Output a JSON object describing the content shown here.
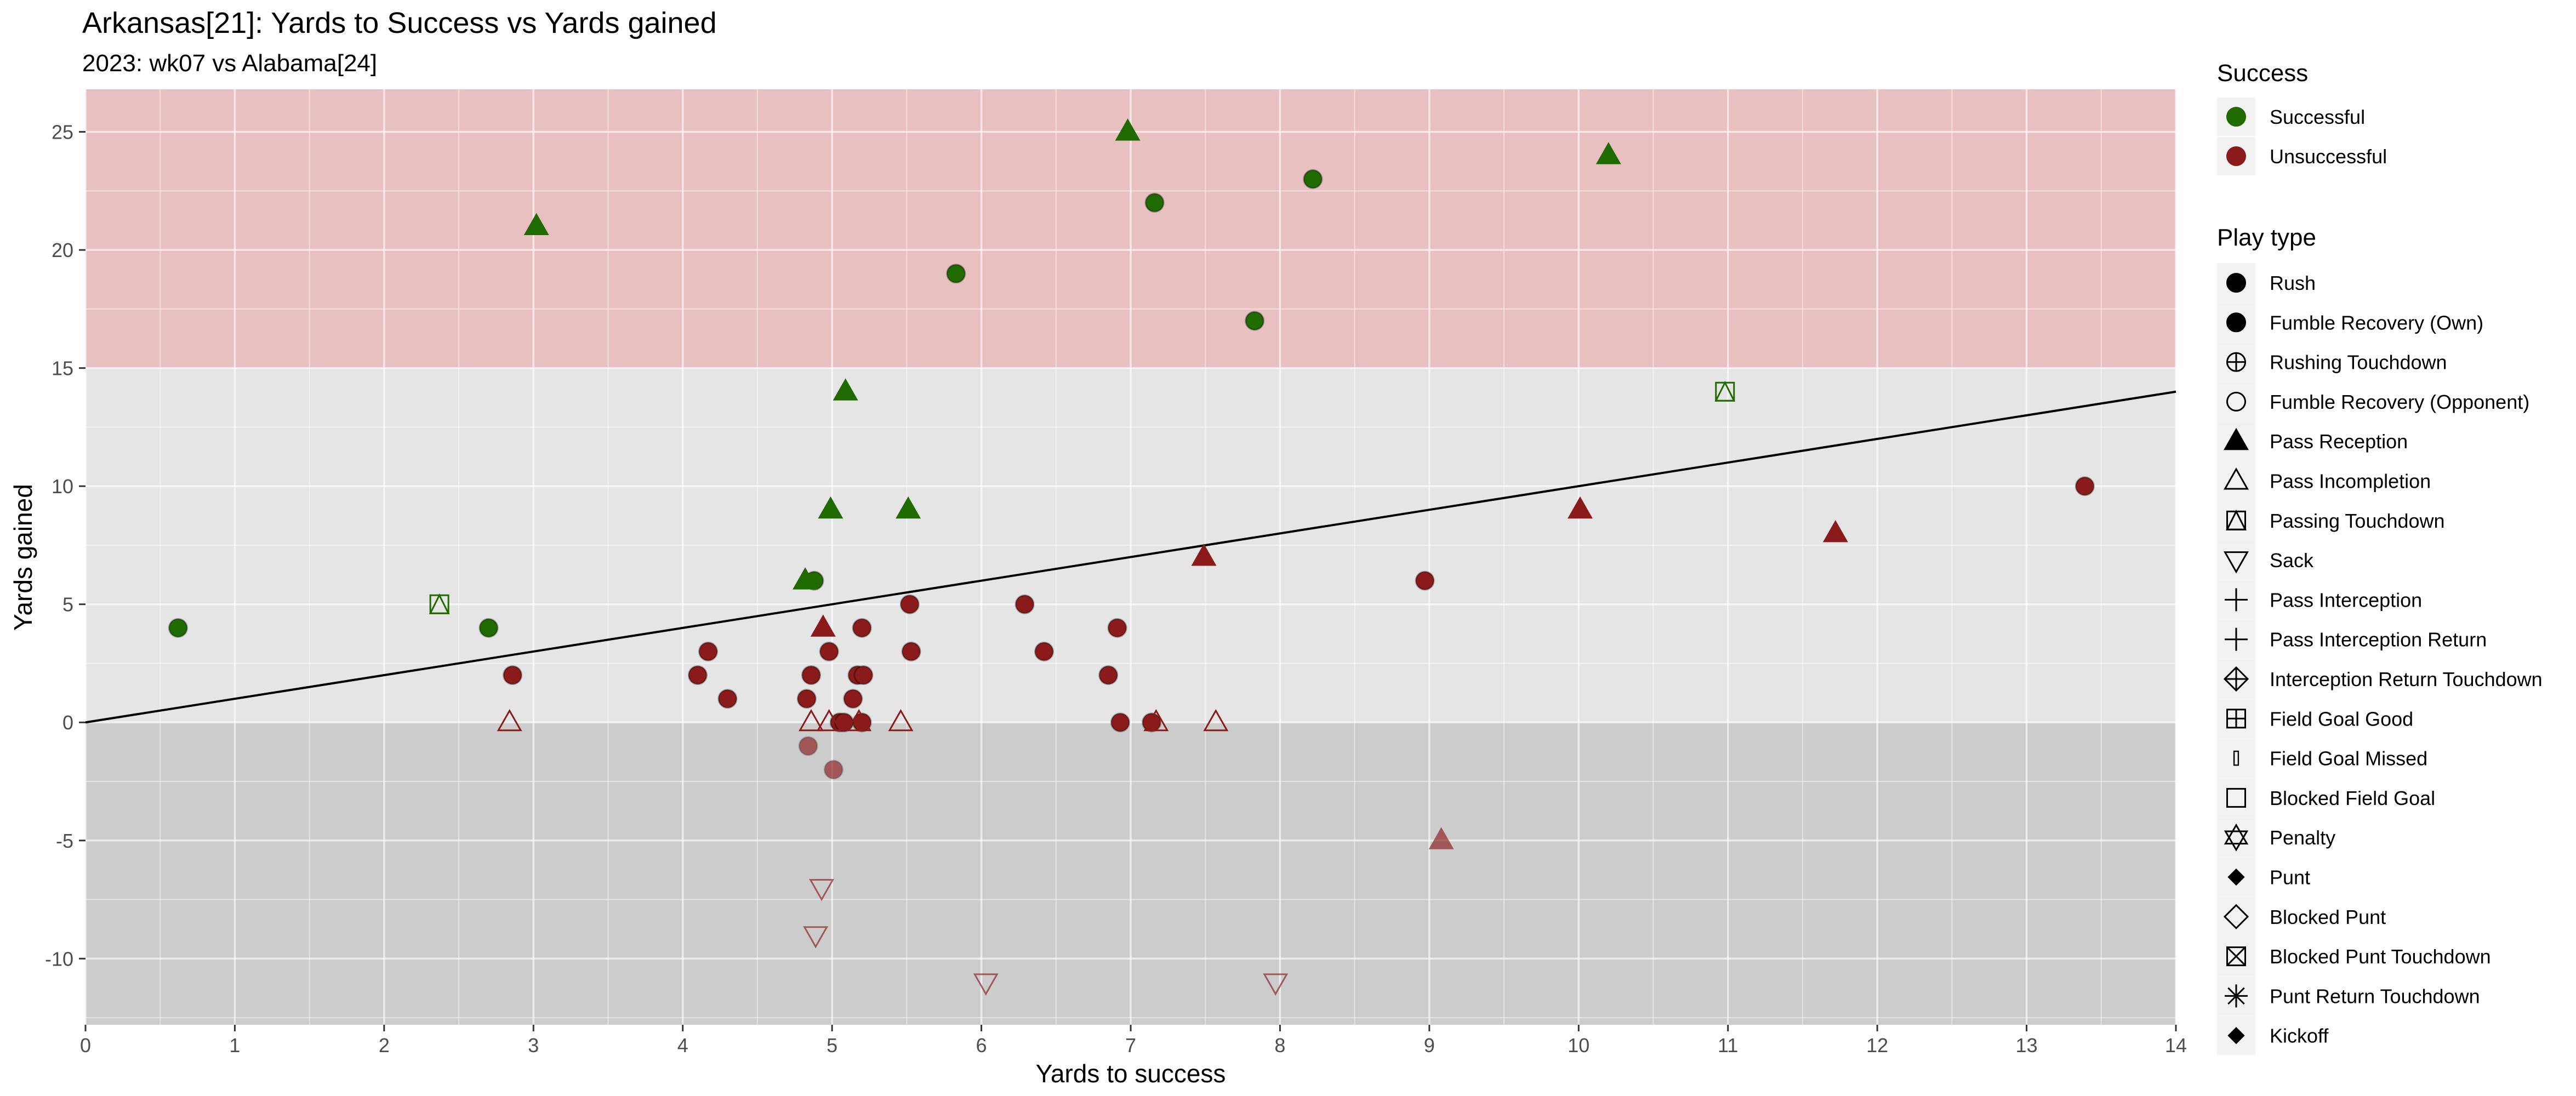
{
  "chart_data": {
    "type": "scatter",
    "title": "Arkansas[21]: Yards to Success vs Yards gained",
    "subtitle": "2023: wk07 vs Alabama[24]",
    "xlabel": "Yards to success",
    "ylabel": "Yards gained",
    "xlim": [
      0,
      14
    ],
    "ylim": [
      -12.8,
      26.8
    ],
    "x_ticks": [
      0,
      1,
      2,
      3,
      4,
      5,
      6,
      7,
      8,
      9,
      10,
      11,
      12,
      13,
      14
    ],
    "y_ticks": [
      -10,
      -5,
      0,
      5,
      10,
      15,
      20,
      25
    ],
    "grid": true,
    "reference_line": {
      "x1": 0,
      "y1": 0,
      "x2": 14,
      "y2": 14
    },
    "bands": [
      {
        "y_from": 15,
        "y_to": 26.8,
        "color": "#e8c0c2"
      },
      {
        "y_from": 0,
        "y_to": 15,
        "color": "#e5e5e5"
      },
      {
        "y_from": -12.8,
        "y_to": 0,
        "color": "#cccccc"
      }
    ],
    "colors": {
      "Successful": "#1f6b00",
      "Unsuccessful": "#8b1a1a"
    },
    "legend_position": "right",
    "legends": [
      {
        "title": "Success",
        "items": [
          {
            "label": "Successful",
            "symbol": "circle",
            "color": "#1f6b00"
          },
          {
            "label": "Unsuccessful",
            "symbol": "circle",
            "color": "#8b1a1a"
          }
        ]
      },
      {
        "title": "Play type",
        "items": [
          {
            "label": "Rush",
            "symbol": "circle"
          },
          {
            "label": "Fumble Recovery (Own)",
            "symbol": "circle"
          },
          {
            "label": "Rushing Touchdown",
            "symbol": "circle-plus"
          },
          {
            "label": "Fumble Recovery (Opponent)",
            "symbol": "circle-open"
          },
          {
            "label": "Pass Reception",
            "symbol": "triangle"
          },
          {
            "label": "Pass Incompletion",
            "symbol": "triangle-open"
          },
          {
            "label": "Passing Touchdown",
            "symbol": "square-triangle"
          },
          {
            "label": "Sack",
            "symbol": "triangle-down-open"
          },
          {
            "label": "Pass Interception",
            "symbol": "plus"
          },
          {
            "label": "Pass Interception Return",
            "symbol": "plus"
          },
          {
            "label": "Interception Return Touchdown",
            "symbol": "diamond-plus"
          },
          {
            "label": "Field Goal Good",
            "symbol": "square-plus"
          },
          {
            "label": "Field Goal Missed",
            "symbol": "thin-rect"
          },
          {
            "label": "Blocked Field Goal",
            "symbol": "square-open"
          },
          {
            "label": "Penalty",
            "symbol": "star-of-david"
          },
          {
            "label": "Punt",
            "symbol": "diamond-small"
          },
          {
            "label": "Blocked Punt",
            "symbol": "diamond-open"
          },
          {
            "label": "Blocked Punt Touchdown",
            "symbol": "square-x"
          },
          {
            "label": "Punt Return Touchdown",
            "symbol": "asterisk"
          },
          {
            "label": "Kickoff",
            "symbol": "diamond-small"
          }
        ]
      }
    ],
    "series": [
      {
        "name": "Successful",
        "points": [
          {
            "x": 0.62,
            "y": 4,
            "play": "Rush"
          },
          {
            "x": 2.7,
            "y": 4,
            "play": "Rush"
          },
          {
            "x": 4.88,
            "y": 6,
            "play": "Rush"
          },
          {
            "x": 2.37,
            "y": 5,
            "play": "Passing Touchdown"
          },
          {
            "x": 10.98,
            "y": 14,
            "play": "Passing Touchdown"
          },
          {
            "x": 4.82,
            "y": 6,
            "play": "Pass Reception"
          },
          {
            "x": 4.99,
            "y": 9,
            "play": "Pass Reception"
          },
          {
            "x": 5.51,
            "y": 9,
            "play": "Pass Reception"
          },
          {
            "x": 5.09,
            "y": 14,
            "play": "Pass Reception"
          },
          {
            "x": 3.02,
            "y": 21,
            "play": "Pass Reception"
          },
          {
            "x": 6.98,
            "y": 25,
            "play": "Pass Reception"
          },
          {
            "x": 10.2,
            "y": 24,
            "play": "Pass Reception"
          },
          {
            "x": 5.83,
            "y": 19,
            "play": "Rush"
          },
          {
            "x": 7.16,
            "y": 22,
            "play": "Rush"
          },
          {
            "x": 7.83,
            "y": 17,
            "play": "Rush"
          },
          {
            "x": 8.22,
            "y": 23,
            "play": "Rush"
          }
        ]
      },
      {
        "name": "Unsuccessful",
        "points": [
          {
            "x": 2.86,
            "y": 2,
            "play": "Rush"
          },
          {
            "x": 4.1,
            "y": 2,
            "play": "Rush"
          },
          {
            "x": 4.17,
            "y": 3,
            "play": "Rush"
          },
          {
            "x": 4.3,
            "y": 1,
            "play": "Rush"
          },
          {
            "x": 4.83,
            "y": 1,
            "play": "Rush"
          },
          {
            "x": 4.86,
            "y": 2,
            "play": "Rush"
          },
          {
            "x": 4.98,
            "y": 3,
            "play": "Rush"
          },
          {
            "x": 5.05,
            "y": 0,
            "play": "Rush"
          },
          {
            "x": 5.08,
            "y": 0,
            "play": "Rush"
          },
          {
            "x": 5.14,
            "y": 1,
            "play": "Rush"
          },
          {
            "x": 5.17,
            "y": 2,
            "play": "Rush"
          },
          {
            "x": 5.2,
            "y": 4,
            "play": "Rush"
          },
          {
            "x": 5.21,
            "y": 2,
            "play": "Rush"
          },
          {
            "x": 5.2,
            "y": 0,
            "play": "Rush"
          },
          {
            "x": 5.52,
            "y": 5,
            "play": "Rush"
          },
          {
            "x": 5.53,
            "y": 3,
            "play": "Rush"
          },
          {
            "x": 6.29,
            "y": 5,
            "play": "Rush"
          },
          {
            "x": 6.42,
            "y": 3,
            "play": "Rush"
          },
          {
            "x": 6.85,
            "y": 2,
            "play": "Rush"
          },
          {
            "x": 6.91,
            "y": 4,
            "play": "Rush"
          },
          {
            "x": 6.93,
            "y": 0,
            "play": "Rush"
          },
          {
            "x": 7.14,
            "y": 0,
            "play": "Rush"
          },
          {
            "x": 8.97,
            "y": 6,
            "play": "Rush"
          },
          {
            "x": 13.39,
            "y": 10,
            "play": "Rush"
          },
          {
            "x": 4.84,
            "y": -1,
            "play": "Rush"
          },
          {
            "x": 5.01,
            "y": -2,
            "play": "Rush"
          },
          {
            "x": 4.94,
            "y": 4,
            "play": "Pass Reception"
          },
          {
            "x": 7.49,
            "y": 7,
            "play": "Pass Reception"
          },
          {
            "x": 10.01,
            "y": 9,
            "play": "Pass Reception"
          },
          {
            "x": 11.72,
            "y": 8,
            "play": "Pass Reception"
          },
          {
            "x": 9.08,
            "y": -5,
            "play": "Pass Reception"
          },
          {
            "x": 2.84,
            "y": 0,
            "play": "Pass Incompletion"
          },
          {
            "x": 4.86,
            "y": 0,
            "play": "Pass Incompletion"
          },
          {
            "x": 4.98,
            "y": 0,
            "play": "Pass Incompletion"
          },
          {
            "x": 5.18,
            "y": 0,
            "play": "Pass Incompletion"
          },
          {
            "x": 5.46,
            "y": 0,
            "play": "Pass Incompletion"
          },
          {
            "x": 7.17,
            "y": 0,
            "play": "Pass Incompletion"
          },
          {
            "x": 7.57,
            "y": 0,
            "play": "Pass Incompletion"
          },
          {
            "x": 4.93,
            "y": -7,
            "play": "Sack"
          },
          {
            "x": 4.89,
            "y": -9,
            "play": "Sack"
          },
          {
            "x": 6.03,
            "y": -11,
            "play": "Sack"
          },
          {
            "x": 7.97,
            "y": -11,
            "play": "Sack"
          }
        ]
      }
    ]
  }
}
